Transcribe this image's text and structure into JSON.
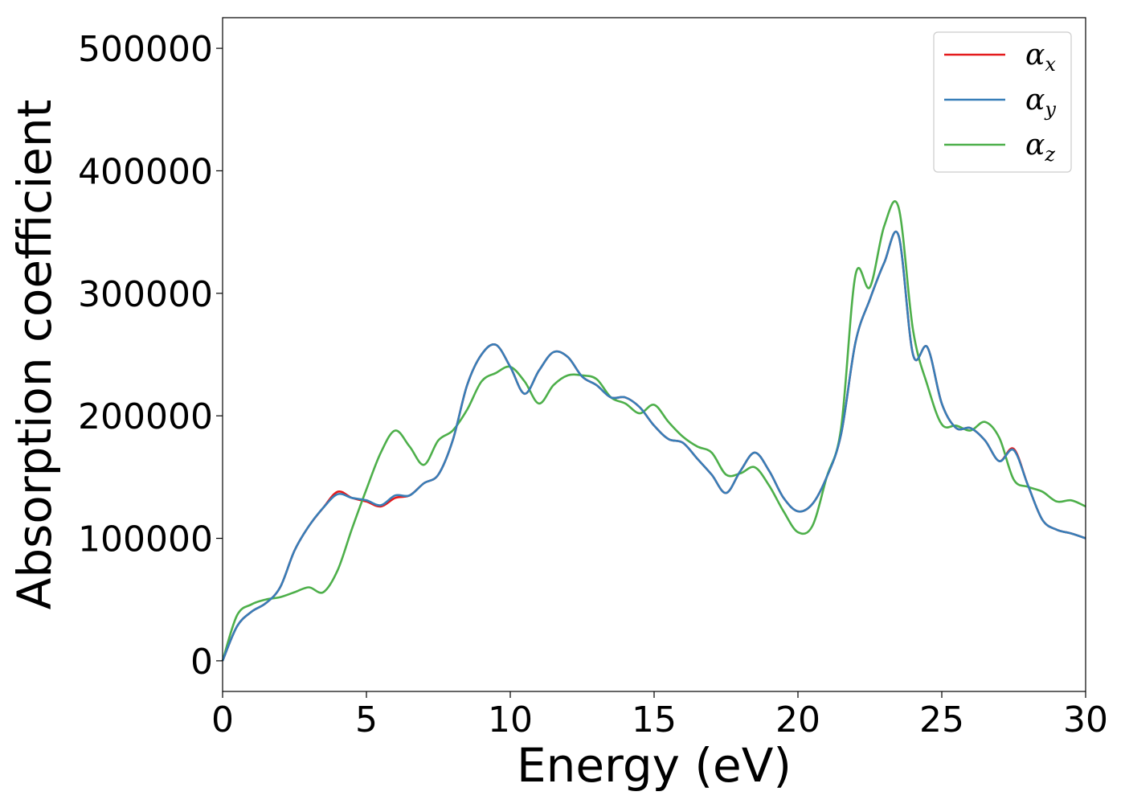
{
  "chart_data": {
    "type": "line",
    "xlabel": "Energy (eV)",
    "ylabel": "Absorption coefficient",
    "xlim": [
      0,
      30
    ],
    "ylim": [
      -25000,
      525000
    ],
    "x_ticks": [
      0,
      5,
      10,
      15,
      20,
      25,
      30
    ],
    "x_tick_labels": [
      "0",
      "5",
      "10",
      "15",
      "20",
      "25",
      "30"
    ],
    "y_ticks": [
      0,
      100000,
      200000,
      300000,
      400000,
      500000
    ],
    "y_tick_labels": [
      "0",
      "100000",
      "200000",
      "300000",
      "400000",
      "500000"
    ],
    "grid": false,
    "legend": "top-right",
    "series": [
      {
        "name": "α",
        "subscript": "x",
        "color": "#e41a1c",
        "x": [
          0,
          0.5,
          1,
          1.5,
          2,
          2.5,
          3,
          3.5,
          4,
          4.5,
          5,
          5.5,
          6,
          6.5,
          7,
          7.5,
          8,
          8.5,
          9,
          9.5,
          10,
          10.5,
          11,
          11.5,
          12,
          12.5,
          13,
          13.5,
          14,
          14.5,
          15,
          15.5,
          16,
          16.5,
          17,
          17.5,
          18,
          18.5,
          19,
          19.5,
          20,
          20.5,
          21,
          21.5,
          22,
          22.5,
          23,
          23.5,
          24,
          24.5,
          25,
          25.5,
          26,
          26.5,
          27,
          27.5,
          28,
          28.5,
          29,
          29.5,
          30
        ],
        "values": [
          0,
          28000,
          40000,
          47000,
          60000,
          90000,
          110000,
          125000,
          138000,
          133000,
          130000,
          126000,
          133000,
          135000,
          145000,
          152000,
          180000,
          225000,
          250000,
          258000,
          240000,
          218000,
          237000,
          252000,
          248000,
          232000,
          225000,
          215000,
          215000,
          207000,
          192000,
          181000,
          178000,
          165000,
          152000,
          137000,
          155000,
          170000,
          155000,
          133000,
          122000,
          128000,
          150000,
          185000,
          260000,
          295000,
          325000,
          347000,
          250000,
          256000,
          210000,
          190000,
          190000,
          180000,
          163000,
          173000,
          143000,
          115000,
          107000,
          104000,
          100000
        ]
      },
      {
        "name": "α",
        "subscript": "y",
        "color": "#377eb8",
        "x": [
          0,
          0.5,
          1,
          1.5,
          2,
          2.5,
          3,
          3.5,
          4,
          4.5,
          5,
          5.5,
          6,
          6.5,
          7,
          7.5,
          8,
          8.5,
          9,
          9.5,
          10,
          10.5,
          11,
          11.5,
          12,
          12.5,
          13,
          13.5,
          14,
          14.5,
          15,
          15.5,
          16,
          16.5,
          17,
          17.5,
          18,
          18.5,
          19,
          19.5,
          20,
          20.5,
          21,
          21.5,
          22,
          22.5,
          23,
          23.5,
          24,
          24.5,
          25,
          25.5,
          26,
          26.5,
          27,
          27.5,
          28,
          28.5,
          29,
          29.5,
          30
        ],
        "values": [
          0,
          28000,
          40000,
          47000,
          60000,
          90000,
          110000,
          125000,
          136000,
          133000,
          131000,
          127000,
          135000,
          135000,
          145000,
          152000,
          180000,
          225000,
          250000,
          258000,
          240000,
          218000,
          237000,
          252000,
          248000,
          232000,
          225000,
          215000,
          215000,
          207000,
          192000,
          181000,
          178000,
          165000,
          152000,
          137000,
          155000,
          170000,
          155000,
          133000,
          122000,
          128000,
          150000,
          185000,
          260000,
          295000,
          325000,
          347000,
          250000,
          256000,
          210000,
          190000,
          190000,
          180000,
          163000,
          172000,
          143000,
          115000,
          107000,
          104000,
          100000
        ]
      },
      {
        "name": "α",
        "subscript": "z",
        "color": "#4daf4a",
        "x": [
          0,
          0.5,
          1,
          1.5,
          2,
          2.5,
          3,
          3.5,
          4,
          4.5,
          5,
          5.5,
          6,
          6.5,
          7,
          7.5,
          8,
          8.5,
          9,
          9.5,
          10,
          10.5,
          11,
          11.5,
          12,
          12.5,
          13,
          13.5,
          14,
          14.5,
          15,
          15.5,
          16,
          16.5,
          17,
          17.5,
          18,
          18.5,
          19,
          19.5,
          20,
          20.5,
          21,
          21.5,
          22,
          22.5,
          23,
          23.5,
          24,
          24.5,
          25,
          25.5,
          26,
          26.5,
          27,
          27.5,
          28,
          28.5,
          29,
          29.5,
          30
        ],
        "values": [
          0,
          37000,
          46000,
          50000,
          52000,
          56000,
          60000,
          56000,
          74000,
          108000,
          140000,
          170000,
          188000,
          175000,
          160000,
          180000,
          188000,
          205000,
          228000,
          235000,
          240000,
          228000,
          210000,
          225000,
          233000,
          233000,
          230000,
          215000,
          210000,
          202000,
          209000,
          195000,
          183000,
          175000,
          170000,
          152000,
          153000,
          158000,
          143000,
          122000,
          105000,
          110000,
          150000,
          190000,
          315000,
          305000,
          355000,
          370000,
          270000,
          225000,
          193000,
          192000,
          188000,
          195000,
          182000,
          148000,
          142000,
          138000,
          130000,
          131000,
          126000
        ]
      }
    ]
  }
}
